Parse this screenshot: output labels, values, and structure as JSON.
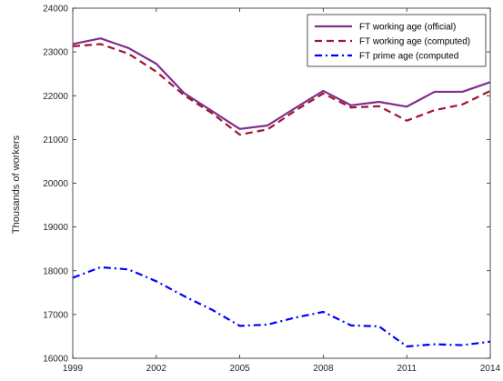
{
  "chart_data": {
    "type": "line",
    "title": "",
    "xlabel": "",
    "ylabel": "Thousands of workers",
    "xlim": [
      1999,
      2014
    ],
    "ylim": [
      16000,
      24000
    ],
    "x_ticks": [
      1999,
      2002,
      2005,
      2008,
      2011,
      2014
    ],
    "y_ticks": [
      16000,
      17000,
      18000,
      19000,
      20000,
      21000,
      22000,
      23000,
      24000
    ],
    "x": [
      1999,
      2000,
      2001,
      2002,
      2003,
      2004,
      2005,
      2006,
      2007,
      2008,
      2009,
      2010,
      2011,
      2012,
      2013,
      2014
    ],
    "series": [
      {
        "name": "FT working age (official)",
        "color": "#7e2f8e",
        "style": "solid",
        "values": [
          23180,
          23310,
          23090,
          22730,
          22060,
          21650,
          21240,
          21320,
          21720,
          22110,
          21780,
          21860,
          21750,
          22090,
          22090,
          22310
        ]
      },
      {
        "name": "FT working age (computed)",
        "color": "#a2142f",
        "style": "dashed",
        "values": [
          23130,
          23180,
          22960,
          22550,
          22010,
          21600,
          21110,
          21230,
          21660,
          22050,
          21730,
          21760,
          21430,
          21670,
          21800,
          22110
        ]
      },
      {
        "name": "FT prime age (computed",
        "color": "#0000ff",
        "style": "dashdot",
        "values": [
          17840,
          18080,
          18030,
          17760,
          17420,
          17110,
          16740,
          16770,
          16930,
          17060,
          16750,
          16730,
          16270,
          16320,
          16300,
          16380
        ]
      }
    ],
    "grid": false,
    "legend_position": "top-right"
  }
}
